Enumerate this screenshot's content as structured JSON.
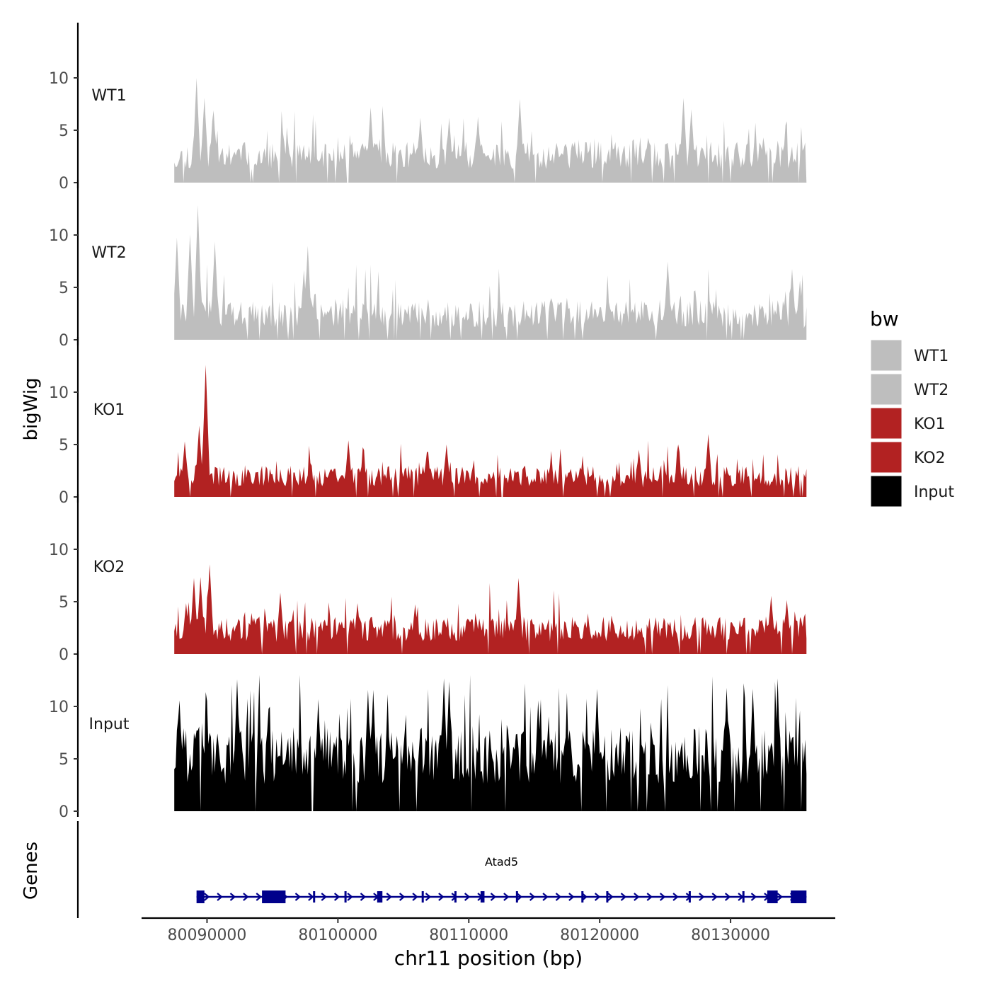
{
  "chart_data": {
    "type": "area",
    "ylabel": "bigWig",
    "xlabel": "chr11 position (bp)",
    "xlim": [
      80085000,
      80138000
    ],
    "data_range": [
      80087500,
      80135800
    ],
    "ylim": [
      0,
      13
    ],
    "yticks": [
      0,
      5,
      10
    ],
    "xticks": [
      80090000,
      80100000,
      80110000,
      80120000,
      80130000
    ],
    "xtick_labels": [
      "80090000",
      "80100000",
      "80110000",
      "80120000",
      "80130000"
    ],
    "legend": {
      "title": "bw",
      "position": "right",
      "entries": [
        {
          "label": "WT1",
          "color": "#bebebe"
        },
        {
          "label": "WT2",
          "color": "#bebebe"
        },
        {
          "label": "KO1",
          "color": "#b22222"
        },
        {
          "label": "KO2",
          "color": "#b22222"
        },
        {
          "label": "Input",
          "color": "#000000"
        }
      ]
    },
    "series": [
      {
        "name": "WT1",
        "color": "#bebebe",
        "seed": 11,
        "base": 1.3,
        "spread": 2.6,
        "peaks": [
          [
            80089200,
            9.6
          ],
          [
            80089800,
            7.7
          ],
          [
            80090500,
            6.5
          ],
          [
            80102500,
            6.8
          ],
          [
            80113900,
            7.6
          ],
          [
            80126400,
            7.7
          ],
          [
            80127000,
            6.6
          ],
          [
            80106300,
            5.8
          ],
          [
            80108500,
            5.8
          ],
          [
            80110700,
            5.9
          ]
        ]
      },
      {
        "name": "WT2",
        "color": "#bebebe",
        "seed": 23,
        "base": 1.2,
        "spread": 2.6,
        "peaks": [
          [
            80087700,
            9.4
          ],
          [
            80088700,
            9.7
          ],
          [
            80089300,
            12.5
          ],
          [
            80090600,
            9.0
          ],
          [
            80097700,
            8.6
          ],
          [
            80097400,
            6.3
          ],
          [
            80125200,
            7.1
          ],
          [
            80134700,
            6.4
          ],
          [
            80135300,
            5.3
          ],
          [
            80092400,
            2.0
          ]
        ]
      },
      {
        "name": "KO1",
        "color": "#b22222",
        "seed": 37,
        "base": 1.0,
        "spread": 2.0,
        "peaks": [
          [
            80089900,
            12.3
          ],
          [
            80089400,
            6.5
          ],
          [
            80088300,
            5.0
          ],
          [
            80100800,
            5.1
          ],
          [
            80108300,
            4.7
          ],
          [
            80128300,
            5.7
          ],
          [
            80126000,
            4.7
          ],
          [
            80123000,
            4.2
          ],
          [
            80106800,
            4.0
          ]
        ]
      },
      {
        "name": "KO2",
        "color": "#b22222",
        "seed": 53,
        "base": 1.2,
        "spread": 2.4,
        "peaks": [
          [
            80090200,
            8.2
          ],
          [
            80089500,
            7.0
          ],
          [
            80089000,
            6.9
          ],
          [
            80088400,
            4.5
          ],
          [
            80095600,
            5.5
          ],
          [
            80113800,
            6.9
          ],
          [
            80105900,
            4.4
          ],
          [
            80133100,
            5.2
          ],
          [
            80134300,
            4.8
          ],
          [
            80101500,
            4.5
          ]
        ]
      },
      {
        "name": "Input",
        "color": "#000000",
        "seed": 71,
        "base": 2.6,
        "spread": 5.4,
        "peaks": [
          [
            80092300,
            11.8
          ],
          [
            80102300,
            10.8
          ],
          [
            80102700,
            10.8
          ],
          [
            80108100,
            11.9
          ],
          [
            80108500,
            11.6
          ],
          [
            80098500,
            9.9
          ],
          [
            80129700,
            11.0
          ],
          [
            80131700,
            10.9
          ],
          [
            80133600,
            11.0
          ],
          [
            80119800,
            10.9
          ],
          [
            80115300,
            9.8
          ],
          [
            80087900,
            9.8
          ]
        ]
      }
    ],
    "genes_track": {
      "label": "Genes",
      "gene_name": "Atad5",
      "gene_start": 80089200,
      "gene_end": 80135800,
      "color": "#00008b",
      "exons": [
        [
          80089200,
          80089800
        ],
        [
          80094200,
          80096000
        ],
        [
          80098100,
          80098200
        ],
        [
          80100500,
          80100600
        ],
        [
          80103000,
          80103400
        ],
        [
          80106400,
          80106500
        ],
        [
          80108900,
          80109000
        ],
        [
          80110900,
          80111200
        ],
        [
          80113600,
          80113700
        ],
        [
          80118600,
          80118700
        ],
        [
          80120500,
          80120600
        ],
        [
          80126800,
          80126900
        ],
        [
          80130900,
          80131000
        ],
        [
          80132800,
          80133600
        ],
        [
          80134600,
          80135800
        ]
      ]
    }
  }
}
